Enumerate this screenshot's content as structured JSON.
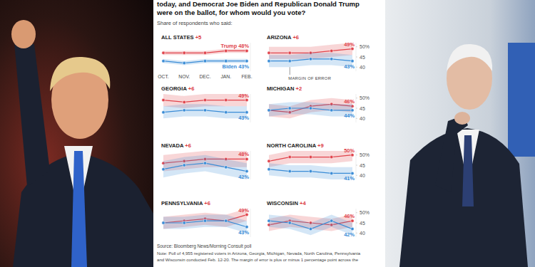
{
  "header": {
    "question_lines": [
      "today, and Democrat Joe Biden and Republican Donald Trump",
      "were on the ballot, for whom would you vote?"
    ],
    "subtitle": "Share of respondents who said:"
  },
  "footer": {
    "source": "Source: Bloomberg News/Morning Consult poll",
    "note_lines": [
      "Note: Poll of 4,955 registered voters in Arizona, Georgia, Michigan, Nevada, North Carolina, Pennsylvania",
      "and Wisconsin conducted Feb. 12-20. The margin of error is plus or minus 1 percentage point across the"
    ]
  },
  "chart_data": [
    {
      "type": "line",
      "title": "ALL STATES +5",
      "categories": [
        "OCT.",
        "NOV.",
        "DEC.",
        "JAN.",
        "FEB."
      ],
      "ylim": [
        38,
        52
      ],
      "tick_labels": "x",
      "data_labels": true,
      "legend": "inline",
      "series": [
        {
          "name": "Trump",
          "color": "#e0434b",
          "marker": "circle",
          "line_style": "solid",
          "values": [
            47,
            47,
            47,
            48,
            48
          ],
          "error": [
            1,
            1,
            1,
            1,
            1
          ],
          "value_labels": [
            null,
            null,
            null,
            null,
            "48%"
          ]
        },
        {
          "name": "Biden",
          "color": "#3a8cd6",
          "marker": "circle",
          "line_style": "solid",
          "values": [
            43,
            42,
            43,
            43,
            43
          ],
          "error": [
            1,
            1,
            1,
            1,
            1
          ],
          "value_labels": [
            null,
            null,
            null,
            null,
            "43%"
          ]
        }
      ]
    },
    {
      "type": "line",
      "title": "ARIZONA +6",
      "categories": [
        null,
        null,
        null,
        null,
        null
      ],
      "ylim": [
        38,
        52
      ],
      "yticks": [
        {
          "value": 50,
          "label": "50%"
        },
        45,
        40
      ],
      "tick_labels": "y",
      "data_labels": true,
      "annotations": [
        "MARGIN OF ERROR"
      ],
      "series": [
        {
          "color": "#e0434b",
          "marker": "circle",
          "line_style": "solid",
          "values": [
            47,
            47,
            47,
            48,
            49
          ],
          "error": [
            3,
            3,
            3,
            3,
            3
          ],
          "value_labels": [
            null,
            null,
            null,
            null,
            "49%"
          ]
        },
        {
          "color": "#3a8cd6",
          "marker": "circle",
          "line_style": "solid",
          "values": [
            43,
            43,
            44,
            44,
            43
          ],
          "error": [
            3,
            3,
            3,
            3,
            3
          ],
          "value_labels": [
            null,
            null,
            null,
            null,
            "43%"
          ]
        }
      ]
    },
    {
      "type": "line",
      "title": "GEORGIA +6",
      "categories": [
        null,
        null,
        null,
        null,
        null
      ],
      "ylim": [
        38,
        52
      ],
      "tick_labels": false,
      "data_labels": true,
      "series": [
        {
          "color": "#e0434b",
          "marker": "circle",
          "line_style": "solid",
          "values": [
            49,
            48,
            49,
            49,
            49
          ],
          "error": [
            3,
            3,
            3,
            3,
            3
          ],
          "value_labels": [
            null,
            null,
            null,
            null,
            "49%"
          ]
        },
        {
          "color": "#3a8cd6",
          "marker": "circle",
          "line_style": "solid",
          "values": [
            43,
            44,
            44,
            43,
            43
          ],
          "error": [
            3,
            3,
            3,
            3,
            3
          ],
          "value_labels": [
            null,
            null,
            null,
            null,
            "43%"
          ]
        }
      ]
    },
    {
      "type": "line",
      "title": "MICHIGAN +2",
      "categories": [
        null,
        null,
        null,
        null,
        null
      ],
      "ylim": [
        38,
        52
      ],
      "yticks": [
        {
          "value": 50,
          "label": "50%"
        },
        45,
        40
      ],
      "tick_labels": "y",
      "data_labels": true,
      "series": [
        {
          "color": "#e0434b",
          "marker": "circle",
          "line_style": "solid",
          "values": [
            44,
            43,
            46,
            47,
            46
          ],
          "error": [
            3,
            3,
            3,
            3,
            3
          ],
          "value_labels": [
            null,
            null,
            null,
            null,
            "46%"
          ]
        },
        {
          "color": "#3a8cd6",
          "marker": "circle",
          "line_style": "solid",
          "values": [
            44,
            45,
            45,
            44,
            44
          ],
          "error": [
            3,
            3,
            3,
            3,
            3
          ],
          "value_labels": [
            null,
            null,
            null,
            null,
            "44%"
          ]
        }
      ]
    },
    {
      "type": "line",
      "title": "NEVADA +6",
      "categories": [
        null,
        null,
        null,
        null,
        null
      ],
      "ylim": [
        38,
        52
      ],
      "tick_labels": false,
      "data_labels": true,
      "series": [
        {
          "color": "#e0434b",
          "marker": "circle",
          "line_style": "solid",
          "values": [
            46,
            47,
            48,
            48,
            48
          ],
          "error": [
            4,
            4,
            4,
            4,
            4
          ],
          "value_labels": [
            null,
            null,
            null,
            null,
            "48%"
          ]
        },
        {
          "color": "#3a8cd6",
          "marker": "circle",
          "line_style": "solid",
          "values": [
            43,
            45,
            46,
            44,
            42
          ],
          "error": [
            4,
            4,
            4,
            4,
            4
          ],
          "value_labels": [
            null,
            null,
            null,
            null,
            "42%"
          ]
        }
      ]
    },
    {
      "type": "line",
      "title": "NORTH CAROLINA +9",
      "categories": [
        null,
        null,
        null,
        null,
        null
      ],
      "ylim": [
        38,
        52
      ],
      "yticks": [
        {
          "value": 50,
          "label": "50%"
        },
        45,
        40
      ],
      "tick_labels": "y",
      "data_labels": true,
      "series": [
        {
          "color": "#e0434b",
          "marker": "circle",
          "line_style": "solid",
          "values": [
            47,
            49,
            49,
            49,
            50
          ],
          "error": [
            3,
            3,
            3,
            3,
            3
          ],
          "value_labels": [
            null,
            null,
            null,
            null,
            "50%"
          ]
        },
        {
          "color": "#3a8cd6",
          "marker": "circle",
          "line_style": "solid",
          "values": [
            43,
            42,
            42,
            41,
            41
          ],
          "error": [
            3,
            3,
            3,
            3,
            3
          ],
          "value_labels": [
            null,
            null,
            null,
            null,
            "41%"
          ]
        }
      ]
    },
    {
      "type": "line",
      "title": "PENNSYLVANIA +6",
      "categories": [
        null,
        null,
        null,
        null,
        null
      ],
      "ylim": [
        38,
        52
      ],
      "tick_labels": false,
      "data_labels": true,
      "series": [
        {
          "color": "#e0434b",
          "marker": "circle",
          "line_style": "solid",
          "values": [
            45,
            46,
            47,
            46,
            49
          ],
          "error": [
            3,
            3,
            3,
            3,
            3
          ],
          "value_labels": [
            null,
            null,
            null,
            null,
            "49%"
          ]
        },
        {
          "color": "#3a8cd6",
          "marker": "circle",
          "line_style": "solid",
          "values": [
            45,
            45,
            46,
            46,
            43
          ],
          "error": [
            3,
            3,
            3,
            3,
            3
          ],
          "value_labels": [
            null,
            null,
            null,
            null,
            "43%"
          ]
        }
      ]
    },
    {
      "type": "line",
      "title": "WISCONSIN +4",
      "categories": [
        null,
        null,
        null,
        null,
        null
      ],
      "ylim": [
        38,
        52
      ],
      "yticks": [
        {
          "value": 50,
          "label": "50%"
        },
        45,
        40
      ],
      "tick_labels": "y",
      "data_labels": true,
      "series": [
        {
          "color": "#e0434b",
          "marker": "circle",
          "line_style": "solid",
          "values": [
            44,
            46,
            45,
            44,
            46
          ],
          "error": [
            3,
            3,
            3,
            3,
            3
          ],
          "value_labels": [
            null,
            null,
            null,
            null,
            "46%"
          ]
        },
        {
          "color": "#3a8cd6",
          "marker": "circle",
          "line_style": "solid",
          "values": [
            46,
            45,
            42,
            46,
            42
          ],
          "error": [
            3,
            3,
            3,
            3,
            3
          ],
          "value_labels": [
            null,
            null,
            null,
            null,
            "42%"
          ]
        }
      ]
    }
  ]
}
